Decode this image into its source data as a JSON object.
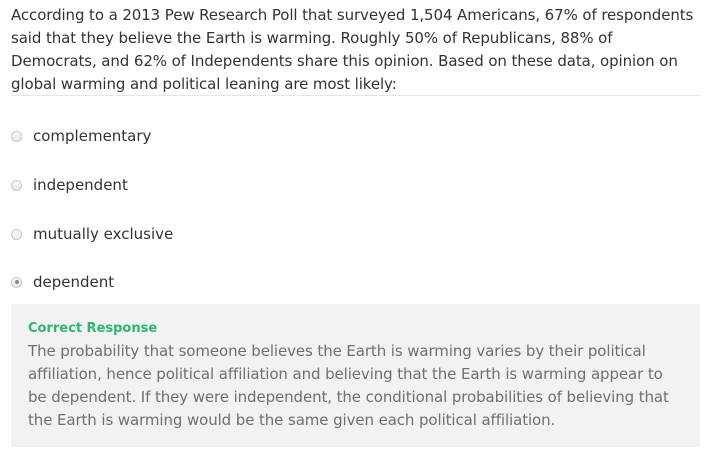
{
  "question": {
    "text": "According to a 2013 Pew Research Poll that surveyed 1,504 Americans, 67% of respondents said that they believe the Earth is warming. Roughly 50% of Republicans, 88% of Democrats, and 62% of Independents share this opinion. Based on these data, opinion on global warming and political leaning are most likely:"
  },
  "options": [
    {
      "label": "complementary",
      "selected": false
    },
    {
      "label": "independent",
      "selected": false
    },
    {
      "label": "mutually exclusive",
      "selected": false
    },
    {
      "label": "dependent",
      "selected": true
    }
  ],
  "feedback": {
    "title": "Correct Response",
    "text": "The probability that someone believes the Earth is warming varies by their political affiliation, hence political affiliation and believing that the Earth is warming appear to be dependent. If they were independent, the conditional probabilities of believing that the Earth is warming would be the same given each political affiliation."
  },
  "colors": {
    "correct": "#2eb673",
    "feedback_bg": "#f2f2f2",
    "feedback_text": "#6f6f6f"
  }
}
